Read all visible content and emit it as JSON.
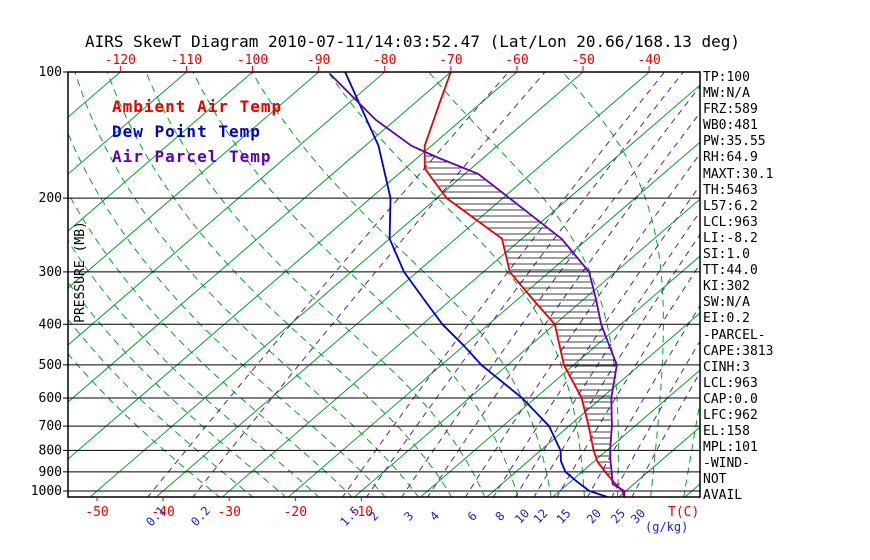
{
  "title": "AIRS SkewT Diagram 2010-07-11/14:03:52.47 (Lat/Lon 20.66/168.13 deg)",
  "legend": {
    "items": [
      {
        "label": "Ambient Air Temp",
        "color": "#e60000"
      },
      {
        "label": "Dew Point Temp",
        "color": "#0000cd"
      },
      {
        "label": "Air Parcel Temp",
        "color": "#5f00b8"
      }
    ]
  },
  "axes": {
    "pressure_label": "PRESSURE (MB)",
    "pressure_ticks": [
      "100",
      "200",
      "300",
      "400",
      "500",
      "600",
      "700",
      "800",
      "900",
      "1000"
    ],
    "top_ticks": [
      "-120",
      "-110",
      "-100",
      "-90",
      "-80",
      "-70",
      "-60",
      "-50",
      "-40"
    ],
    "bottom_temp_ticks": [
      "-50",
      "-40",
      "-30",
      "-20",
      "-10"
    ],
    "temp_unit": "T(C)",
    "mr_ticks": [
      "0.1",
      "0.2",
      "1.5",
      "2",
      "3",
      "4",
      "6",
      "8",
      "10",
      "12",
      "15",
      "20",
      "25",
      "30"
    ],
    "mr_unit": "(g/kg)"
  },
  "stats": [
    "TP:100",
    "MW:N/A",
    "FRZ:589",
    "WB0:481",
    "PW:35.55",
    "RH:64.9",
    "MAXT:30.1",
    "TH:5463",
    "L57:6.2",
    "LCL:963",
    "LI:-8.2",
    "SI:1.0",
    "TT:44.0",
    "KI:302",
    "SW:N/A",
    "EI:0.2",
    "-PARCEL-",
    "CAPE:3813",
    "CINH:3",
    "LCL:963",
    "CAP:0.0",
    "LFC:962",
    "EL:158",
    "MPL:101",
    "-WIND-",
    "NOT",
    "AVAIL"
  ],
  "chart_data": {
    "type": "line",
    "subtype": "skewt-log-p",
    "title": "AIRS SkewT Diagram 2010-07-11/14:03:52.47 (Lat/Lon 20.66/168.13 deg)",
    "ylabel": "PRESSURE (MB)",
    "xlabel": "T(C)",
    "pressure_scale": "log",
    "pressure_range_hpa": [
      100,
      1040
    ],
    "temp_ticks_top_c": [
      -120,
      -110,
      -100,
      -90,
      -80,
      -70,
      -60,
      -50,
      -40
    ],
    "temp_ticks_bottom_c": [
      -50,
      -40,
      -30,
      -20,
      -10
    ],
    "isotherms_c": {
      "min": -160,
      "max": 40,
      "step": 10
    },
    "moist_adiabats_start_c": {
      "min": -30,
      "max": 40,
      "step": 5
    },
    "mixing_ratio_lines_gkg": [
      0.1,
      0.2,
      1.5,
      2,
      3,
      4,
      6,
      8,
      10,
      12,
      15,
      20,
      25,
      30
    ],
    "colors": {
      "isotherm": "#00a327",
      "moist_adiabat": "#00a327",
      "mixing_ratio": "#4b22b4",
      "pressure_line": "#000000",
      "frame": "#000000",
      "hatch": "#000000",
      "top_axis": "#e60000",
      "bottom_temp_axis": "#e60000",
      "mr_axis": "#2222cc",
      "pressure_axis": "#000000"
    },
    "series": [
      {
        "name": "Ambient Air Temp",
        "color": "#e60000",
        "points_p_t": [
          [
            1040,
            31
          ],
          [
            1000,
            29.5
          ],
          [
            950,
            26.5
          ],
          [
            900,
            23.5
          ],
          [
            850,
            20.5
          ],
          [
            800,
            18
          ],
          [
            700,
            13
          ],
          [
            600,
            7
          ],
          [
            500,
            -1.5
          ],
          [
            400,
            -10
          ],
          [
            350,
            -17.5
          ],
          [
            300,
            -26
          ],
          [
            250,
            -33
          ],
          [
            200,
            -48.5
          ],
          [
            170,
            -57
          ],
          [
            150,
            -61
          ],
          [
            120,
            -66
          ],
          [
            100,
            -70
          ]
        ]
      },
      {
        "name": "Dew Point Temp",
        "color": "#0000cd",
        "points_p_t": [
          [
            1040,
            29
          ],
          [
            1000,
            24.5
          ],
          [
            950,
            21
          ],
          [
            900,
            17.5
          ],
          [
            850,
            15
          ],
          [
            800,
            13
          ],
          [
            700,
            7
          ],
          [
            600,
            -2
          ],
          [
            500,
            -14
          ],
          [
            450,
            -20
          ],
          [
            400,
            -27
          ],
          [
            350,
            -34
          ],
          [
            300,
            -42
          ],
          [
            250,
            -50
          ],
          [
            200,
            -57
          ],
          [
            150,
            -68
          ],
          [
            100,
            -86
          ]
        ]
      },
      {
        "name": "Air Parcel Temp",
        "color": "#5f00b8",
        "points_p_t": [
          [
            1040,
            31
          ],
          [
            1000,
            29.8
          ],
          [
            963,
            26.8
          ],
          [
            900,
            24.5
          ],
          [
            850,
            22.5
          ],
          [
            800,
            20.5
          ],
          [
            700,
            16.5
          ],
          [
            600,
            11.5
          ],
          [
            500,
            6.5
          ],
          [
            400,
            -3
          ],
          [
            350,
            -8
          ],
          [
            300,
            -14
          ],
          [
            250,
            -24
          ],
          [
            200,
            -39
          ],
          [
            175,
            -48
          ],
          [
            160,
            -57
          ],
          [
            150,
            -63
          ],
          [
            130,
            -73
          ],
          [
            101,
            -88
          ]
        ]
      }
    ],
    "hatch_between": [
      "Ambient Air Temp",
      "Air Parcel Temp"
    ],
    "hatch_pressure_range_hpa": [
      960,
      158
    ],
    "annotations": {
      "LCL_hpa": 963,
      "LFC_hpa": 962,
      "EL_hpa": 158,
      "MPL_hpa": 101,
      "CAPE": 3813,
      "CINH": 3
    }
  }
}
